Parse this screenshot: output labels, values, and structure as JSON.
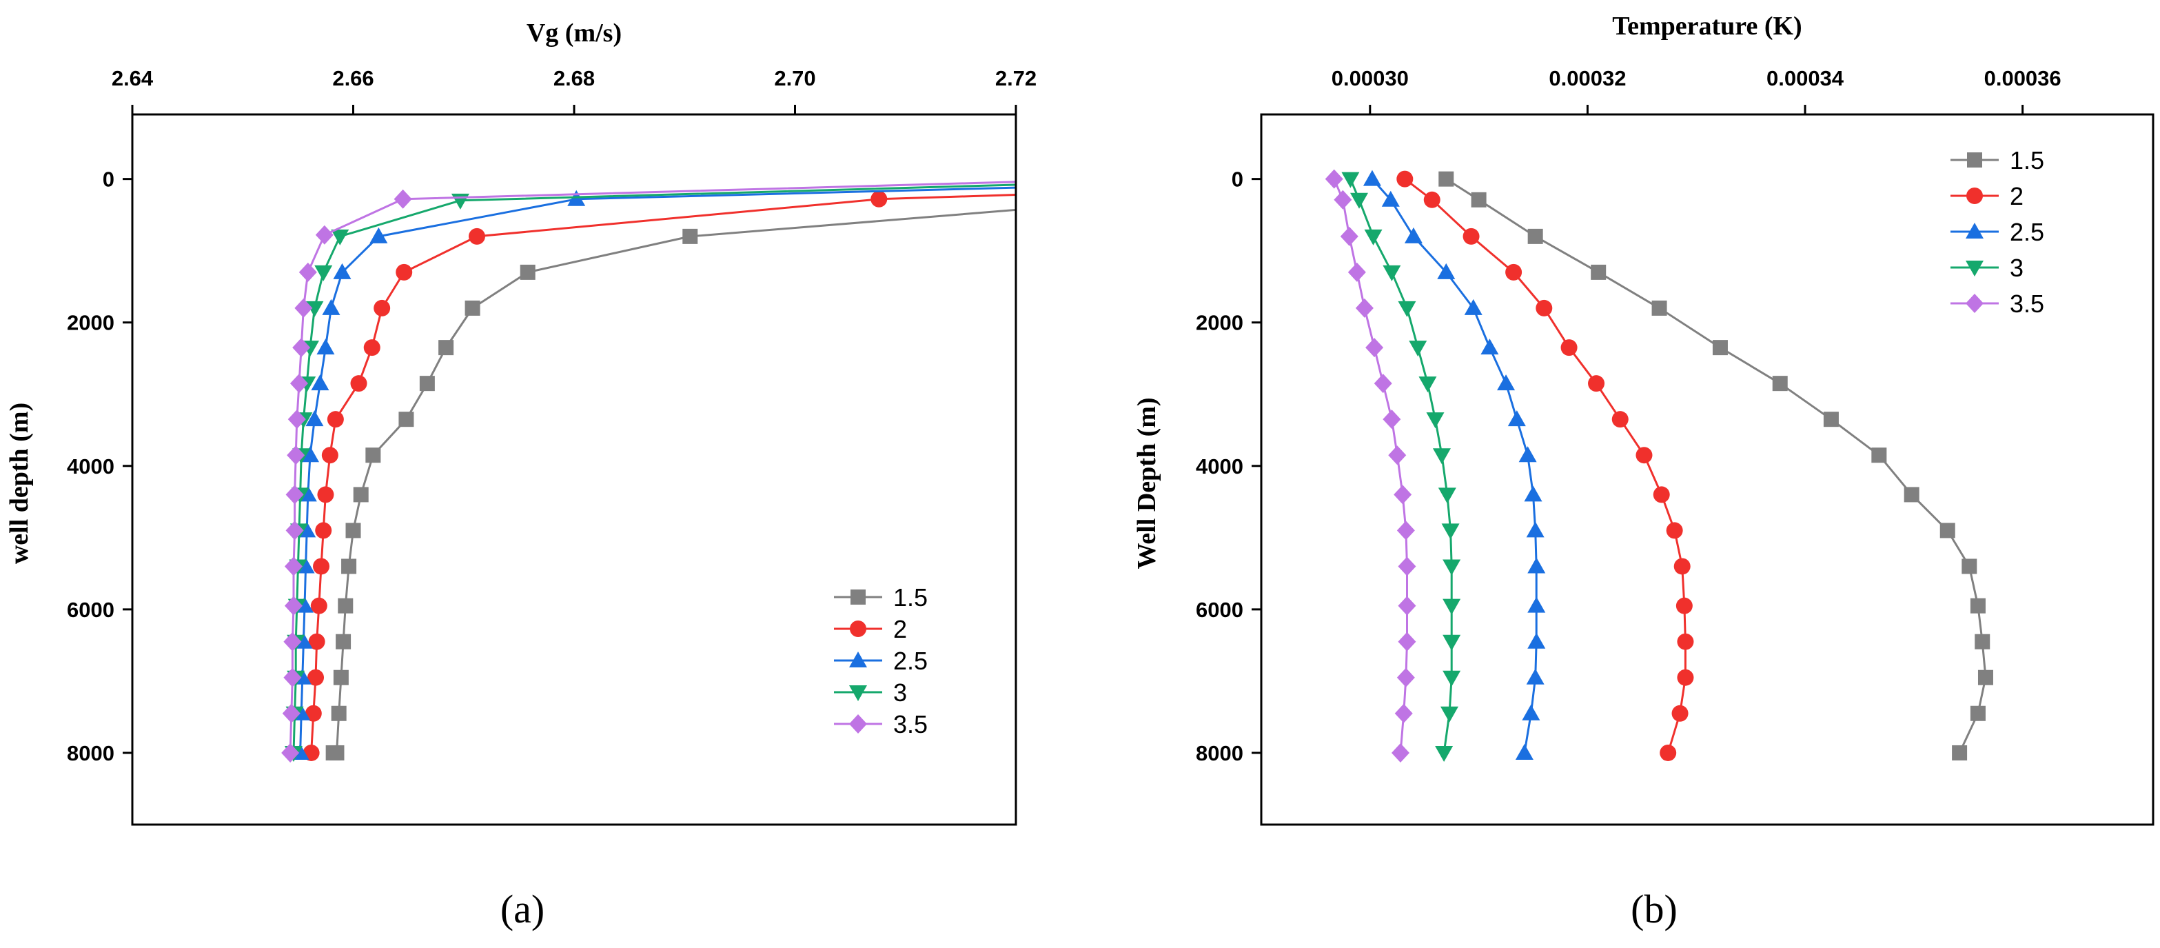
{
  "colors": {
    "s1": "#808080",
    "s2": "#f0302c",
    "s3": "#1a6fe0",
    "s4": "#15a86c",
    "s5": "#bf74e4",
    "axis": "#000000"
  },
  "chart_data": [
    {
      "id": "a",
      "type": "line",
      "panel_label": "(a)",
      "title": "",
      "xlabel": "Vg (m/s)",
      "ylabel": "well depth (m)",
      "xlim": [
        2.64,
        2.72
      ],
      "ylim": [
        9000,
        -900
      ],
      "xticks": [
        "2.64",
        "2.66",
        "2.68",
        "2.70",
        "2.72"
      ],
      "yticks": [
        "0",
        "2000",
        "4000",
        "6000",
        "8000"
      ],
      "legend_position": "bottom-right",
      "series": [
        {
          "name": "1.5",
          "marker": "square",
          "x": [
            2.72,
            2.6905,
            2.6758,
            2.6708,
            2.6684,
            2.6667,
            2.6648,
            2.6618,
            2.6607,
            2.66,
            2.6596,
            2.6593,
            2.6591,
            2.6589,
            2.6587,
            2.6585,
            2.6582
          ],
          "y": [
            430,
            800,
            1300,
            1800,
            2350,
            2850,
            3350,
            3850,
            4400,
            4900,
            5400,
            5950,
            6450,
            6950,
            7450,
            8000,
            8000
          ]
        },
        {
          "name": "2",
          "marker": "circle",
          "x": [
            2.72,
            2.7076,
            2.6712,
            2.6646,
            2.6626,
            2.6617,
            2.6605,
            2.6584,
            2.6579,
            2.6575,
            2.6573,
            2.6571,
            2.6569,
            2.6567,
            2.6566,
            2.6564,
            2.6562
          ],
          "y": [
            220,
            280,
            800,
            1300,
            1800,
            2350,
            2850,
            3350,
            3850,
            4400,
            4900,
            5400,
            5950,
            6450,
            6950,
            7450,
            8000
          ]
        },
        {
          "name": "2.5",
          "marker": "triangle-up",
          "x": [
            2.72,
            2.6802,
            2.6623,
            2.659,
            2.658,
            2.6575,
            2.657,
            2.6565,
            2.6561,
            2.6559,
            2.6558,
            2.6557,
            2.6556,
            2.6555,
            2.6554,
            2.6553,
            2.6552
          ],
          "y": [
            120,
            280,
            800,
            1300,
            1800,
            2350,
            2850,
            3350,
            3850,
            4400,
            4900,
            5400,
            5950,
            6450,
            6950,
            7450,
            8000
          ]
        },
        {
          "name": "3",
          "marker": "triangle-down",
          "x": [
            2.72,
            2.6697,
            2.6588,
            2.6573,
            2.6565,
            2.6561,
            2.6558,
            2.6555,
            2.6553,
            2.6552,
            2.6551,
            2.655,
            2.6549,
            2.6548,
            2.6548,
            2.6547,
            2.6546
          ],
          "y": [
            80,
            300,
            800,
            1300,
            1800,
            2350,
            2850,
            3350,
            3850,
            4400,
            4900,
            5400,
            5950,
            6450,
            6950,
            7450,
            8000
          ]
        },
        {
          "name": "3.5",
          "marker": "diamond",
          "x": [
            2.72,
            2.6645,
            2.6574,
            2.6559,
            2.6555,
            2.6553,
            2.6551,
            2.6549,
            2.6548,
            2.6547,
            2.6547,
            2.6546,
            2.6546,
            2.6545,
            2.6545,
            2.6544,
            2.6543
          ],
          "y": [
            40,
            280,
            780,
            1300,
            1800,
            2350,
            2850,
            3350,
            3850,
            4400,
            4900,
            5400,
            5950,
            6450,
            6950,
            7450,
            8000
          ]
        }
      ]
    },
    {
      "id": "b",
      "type": "line",
      "panel_label": "(b)",
      "title": "",
      "xlabel": "Temperature (K)",
      "ylabel": "Well Depth (m)",
      "xlim": [
        0.00029,
        0.000372
      ],
      "ylim": [
        9000,
        -900
      ],
      "xticks": [
        "0.00030",
        "0.00032",
        "0.00034",
        "0.00036"
      ],
      "yticks": [
        "0",
        "2000",
        "4000",
        "6000",
        "8000"
      ],
      "legend_position": "top-right",
      "series": [
        {
          "name": "1.5",
          "marker": "square",
          "x": [
            0.000307,
            0.00031,
            0.0003152,
            0.000321,
            0.0003266,
            0.0003322,
            0.0003377,
            0.0003424,
            0.0003468,
            0.0003498,
            0.0003531,
            0.0003551,
            0.0003559,
            0.0003563,
            0.0003566,
            0.0003559,
            0.0003542
          ],
          "y": [
            0,
            290,
            800,
            1300,
            1800,
            2350,
            2850,
            3350,
            3850,
            4400,
            4900,
            5400,
            5950,
            6450,
            6950,
            7450,
            8000
          ]
        },
        {
          "name": "2",
          "marker": "circle",
          "x": [
            0.0003032,
            0.0003057,
            0.0003093,
            0.0003132,
            0.000316,
            0.0003183,
            0.0003208,
            0.000323,
            0.0003252,
            0.0003268,
            0.000328,
            0.0003287,
            0.0003289,
            0.000329,
            0.000329,
            0.0003285,
            0.0003274
          ],
          "y": [
            0,
            290,
            800,
            1300,
            1800,
            2350,
            2850,
            3350,
            3850,
            4400,
            4900,
            5400,
            5950,
            6450,
            6950,
            7450,
            8000
          ]
        },
        {
          "name": "2.5",
          "marker": "triangle-up",
          "x": [
            0.0003002,
            0.0003019,
            0.000304,
            0.000307,
            0.0003095,
            0.000311,
            0.0003125,
            0.0003135,
            0.0003145,
            0.000315,
            0.0003152,
            0.0003153,
            0.0003153,
            0.0003153,
            0.0003152,
            0.0003148,
            0.0003142
          ],
          "y": [
            0,
            290,
            800,
            1300,
            1800,
            2350,
            2850,
            3350,
            3850,
            4400,
            4900,
            5400,
            5950,
            6450,
            6950,
            7450,
            8000
          ]
        },
        {
          "name": "3",
          "marker": "triangle-down",
          "x": [
            0.0002982,
            0.000299,
            0.0003003,
            0.000302,
            0.0003034,
            0.0003044,
            0.0003053,
            0.000306,
            0.0003066,
            0.0003071,
            0.0003074,
            0.0003075,
            0.0003075,
            0.0003075,
            0.0003075,
            0.0003073,
            0.0003068
          ],
          "y": [
            0,
            290,
            800,
            1300,
            1800,
            2350,
            2850,
            3350,
            3850,
            4400,
            4900,
            5400,
            5950,
            6450,
            6950,
            7450,
            8000
          ]
        },
        {
          "name": "3.5",
          "marker": "diamond",
          "x": [
            0.0002967,
            0.0002975,
            0.0002981,
            0.0002988,
            0.0002995,
            0.0003004,
            0.0003012,
            0.000302,
            0.0003025,
            0.000303,
            0.0003033,
            0.0003034,
            0.0003034,
            0.0003034,
            0.0003033,
            0.0003031,
            0.0003028
          ],
          "y": [
            0,
            290,
            800,
            1300,
            1800,
            2350,
            2850,
            3350,
            3850,
            4400,
            4900,
            5400,
            5950,
            6450,
            6950,
            7450,
            8000
          ]
        }
      ]
    }
  ]
}
